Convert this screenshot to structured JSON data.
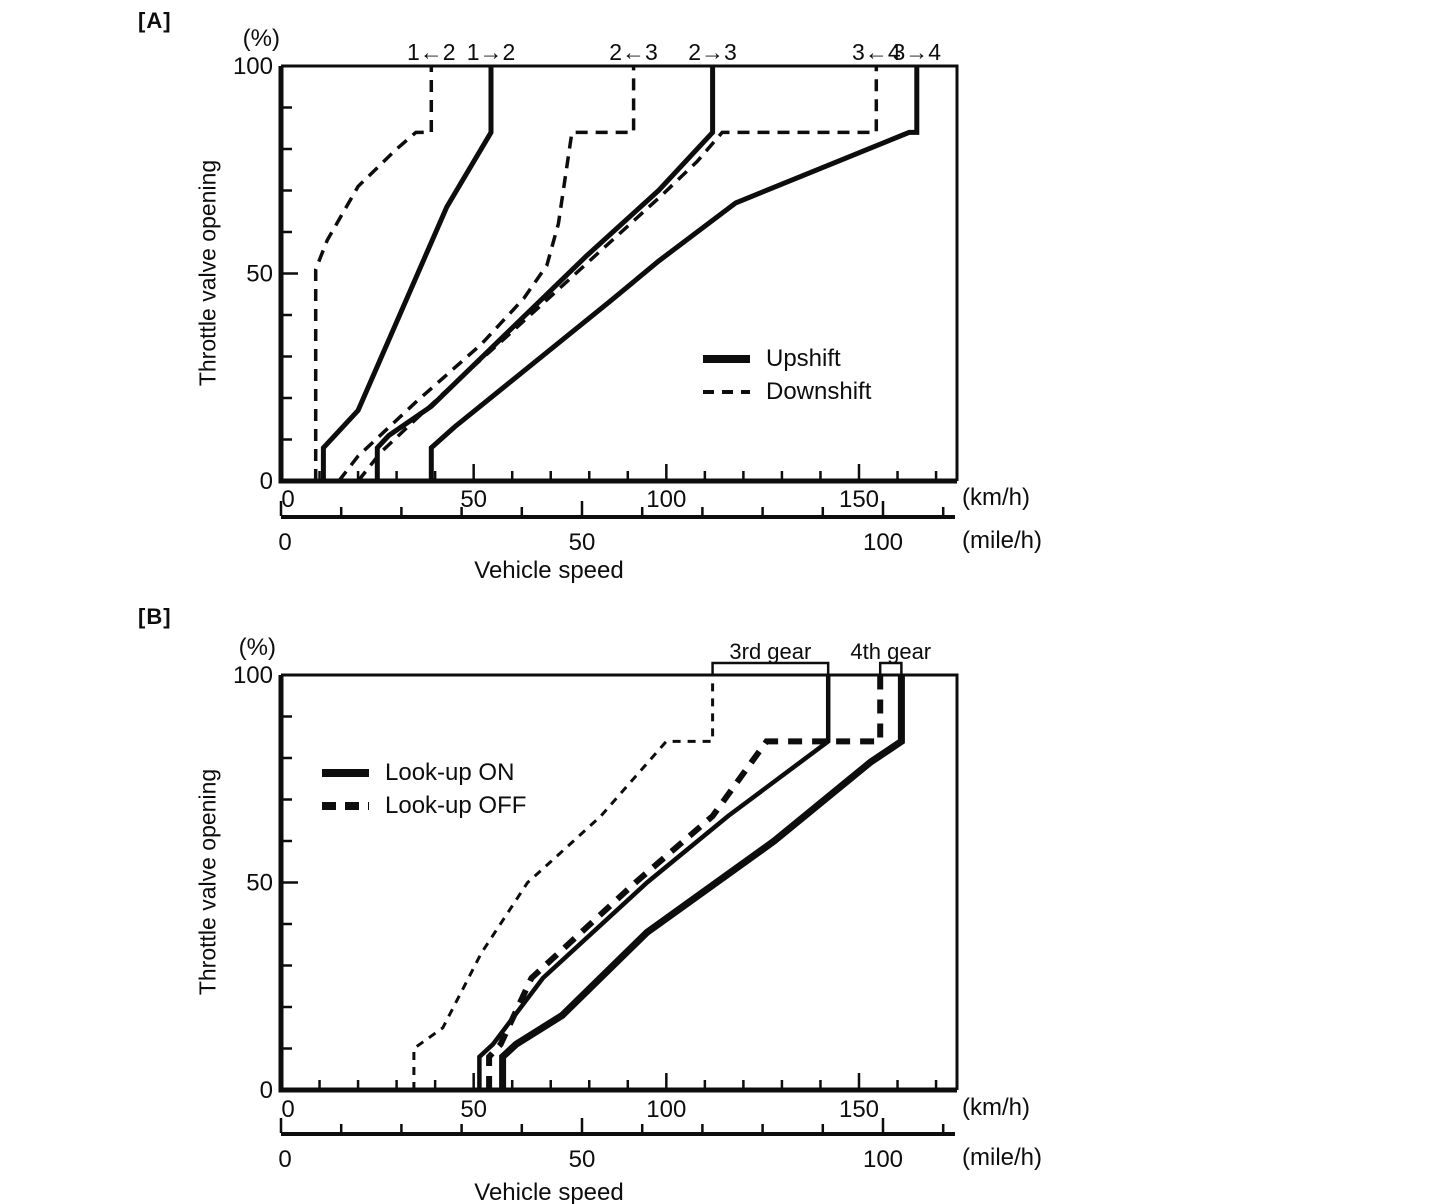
{
  "figure": {
    "description": "Automatic transmission shift schedule diagrams"
  },
  "chart_data": [
    {
      "type": "line",
      "panel_label": "[A]",
      "y_unit": "(%)",
      "ylabel": "Throttle valve opening",
      "xlabel": "Vehicle speed",
      "ylim": [
        0,
        100
      ],
      "y_axis": {
        "major_ticks": [
          0,
          50,
          100
        ],
        "minor_step": 10
      },
      "km_axis": {
        "unit": "(km/h)",
        "major_ticks": [
          0,
          50,
          100,
          150
        ],
        "minor_step": 10,
        "minor_max": 170,
        "range_max": 175
      },
      "mile_axis": {
        "unit": "(mile/h)",
        "major_ticks": [
          0,
          50,
          100
        ],
        "minor_step": 10,
        "minor_max": 110
      },
      "shift_labels": [
        {
          "text": "1←2",
          "v": 39
        },
        {
          "text": "1→2",
          "v": 54.5
        },
        {
          "text": "2←3",
          "v": 91.5
        },
        {
          "text": "2→3",
          "v": 112
        },
        {
          "text": "3←4",
          "v": 154.5
        },
        {
          "text": "3→4",
          "v": 165
        }
      ],
      "legend": [
        {
          "label": "Upshift",
          "style": "solid"
        },
        {
          "label": "Downshift",
          "style": "dashed"
        }
      ],
      "series": [
        {
          "name": "downshift-1-2",
          "style": "dashed",
          "width": 3.5,
          "dash": "12 8",
          "points": [
            [
              9,
              0
            ],
            [
              9,
              51
            ],
            [
              12,
              58
            ],
            [
              20,
              71
            ],
            [
              30,
              80
            ],
            [
              35,
              84
            ],
            [
              39,
              84
            ],
            [
              39,
              100
            ]
          ]
        },
        {
          "name": "upshift-1-2",
          "style": "solid",
          "width": 5,
          "points": [
            [
              11,
              0
            ],
            [
              11,
              8
            ],
            [
              14,
              11
            ],
            [
              20,
              17
            ],
            [
              43,
              66
            ],
            [
              54.5,
              84
            ],
            [
              54.5,
              100
            ]
          ]
        },
        {
          "name": "downshift-2-3",
          "style": "dashed",
          "width": 3.5,
          "dash": "12 8",
          "points": [
            [
              15,
              0
            ],
            [
              20,
              6
            ],
            [
              35,
              19
            ],
            [
              52,
              33
            ],
            [
              63,
              44
            ],
            [
              69,
              52
            ],
            [
              72,
              62
            ],
            [
              75.5,
              84
            ],
            [
              91.5,
              84
            ],
            [
              91.5,
              100
            ]
          ]
        },
        {
          "name": "upshift-2-3",
          "style": "solid",
          "width": 5,
          "points": [
            [
              25,
              0
            ],
            [
              25,
              8
            ],
            [
              28,
              11
            ],
            [
              39,
              18
            ],
            [
              79,
              54
            ],
            [
              98,
              70
            ],
            [
              112,
              84
            ],
            [
              112,
              100
            ]
          ]
        },
        {
          "name": "downshift-3-4",
          "style": "dashed",
          "width": 3.5,
          "dash": "12 8",
          "points": [
            [
              20,
              0
            ],
            [
              26,
              7
            ],
            [
              42,
              21
            ],
            [
              60,
              36
            ],
            [
              80,
              53
            ],
            [
              99,
              69
            ],
            [
              108,
              77
            ],
            [
              114.5,
              84
            ],
            [
              154.5,
              84
            ],
            [
              154.5,
              100
            ]
          ]
        },
        {
          "name": "upshift-3-4",
          "style": "solid",
          "width": 5,
          "points": [
            [
              39,
              0
            ],
            [
              39,
              8
            ],
            [
              45,
              13
            ],
            [
              65,
              28
            ],
            [
              85,
              43
            ],
            [
              98,
              53
            ],
            [
              118,
              67
            ],
            [
              163,
              84
            ],
            [
              165,
              84
            ],
            [
              165,
              100
            ]
          ]
        }
      ]
    },
    {
      "type": "line",
      "panel_label": "[B]",
      "y_unit": "(%)",
      "ylabel": "Throttle valve opening",
      "xlabel": "Vehicle speed",
      "ylim": [
        0,
        100
      ],
      "y_axis": {
        "major_ticks": [
          0,
          50,
          100
        ],
        "minor_step": 10
      },
      "km_axis": {
        "unit": "(km/h)",
        "major_ticks": [
          0,
          50,
          100,
          150
        ],
        "minor_step": 10,
        "minor_max": 170,
        "range_max": 175
      },
      "mile_axis": {
        "unit": "(mile/h)",
        "major_ticks": [
          0,
          50,
          100
        ],
        "minor_step": 10,
        "minor_max": 110
      },
      "gear_brackets": [
        {
          "label": "3rd gear",
          "v1": 112,
          "v2": 142
        },
        {
          "label": "4th gear",
          "v1": 155.5,
          "v2": 161
        }
      ],
      "legend": [
        {
          "label": "Look-up ON",
          "style": "solid"
        },
        {
          "label": "Look-up OFF",
          "style": "thick-dashed"
        }
      ],
      "series": [
        {
          "name": "lookup-off-3rd-boundary",
          "style": "dashed",
          "width": 3,
          "dash": "8 7",
          "points": [
            [
              34.5,
              0
            ],
            [
              34.5,
              10
            ],
            [
              42,
              15
            ],
            [
              52,
              33
            ],
            [
              64,
              50
            ],
            [
              70,
              55
            ],
            [
              83,
              66
            ],
            [
              100,
              84
            ],
            [
              112,
              84
            ],
            [
              112,
              100
            ]
          ]
        },
        {
          "name": "lookup-off-4th-boundary",
          "style": "thick-dashed",
          "width": 6,
          "dash": "14 10",
          "points": [
            [
              54,
              0
            ],
            [
              54,
              8
            ],
            [
              57,
              11
            ],
            [
              65,
              27
            ],
            [
              92,
              50
            ],
            [
              112,
              66
            ],
            [
              126,
              84
            ],
            [
              155.5,
              84
            ],
            [
              155.5,
              100
            ]
          ]
        },
        {
          "name": "lookup-on-3rd-boundary",
          "style": "solid",
          "width": 4.5,
          "points": [
            [
              51.5,
              0
            ],
            [
              51.5,
              8
            ],
            [
              55,
              11
            ],
            [
              68,
              27
            ],
            [
              95,
              50
            ],
            [
              116,
              66
            ],
            [
              142,
              84
            ],
            [
              142,
              100
            ]
          ]
        },
        {
          "name": "lookup-on-4th-boundary",
          "style": "solid",
          "width": 7,
          "points": [
            [
              57.5,
              0
            ],
            [
              57.5,
              8
            ],
            [
              61,
              11
            ],
            [
              73,
              18
            ],
            [
              95,
              38
            ],
            [
              128,
              60
            ],
            [
              153,
              79
            ],
            [
              161,
              84
            ],
            [
              161,
              100
            ]
          ]
        }
      ]
    }
  ]
}
